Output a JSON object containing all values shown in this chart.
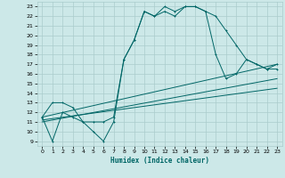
{
  "xlabel": "Humidex (Indice chaleur)",
  "xlim": [
    -0.5,
    23.5
  ],
  "ylim": [
    8.5,
    23.5
  ],
  "yticks": [
    9,
    10,
    11,
    12,
    13,
    14,
    15,
    16,
    17,
    18,
    19,
    20,
    21,
    22,
    23
  ],
  "xticks": [
    0,
    1,
    2,
    3,
    4,
    5,
    6,
    7,
    8,
    9,
    10,
    11,
    12,
    13,
    14,
    15,
    16,
    17,
    18,
    19,
    20,
    21,
    22,
    23
  ],
  "bg_color": "#cce8e8",
  "grid_color": "#aacccc",
  "line_color": "#006666",
  "line1": [
    [
      0,
      11.5
    ],
    [
      1,
      13.0
    ],
    [
      2,
      13.0
    ],
    [
      3,
      12.5
    ],
    [
      4,
      11.0
    ],
    [
      5,
      11.0
    ],
    [
      6,
      11.0
    ],
    [
      7,
      11.5
    ],
    [
      8,
      17.5
    ],
    [
      9,
      19.5
    ],
    [
      10,
      22.5
    ],
    [
      11,
      22.0
    ],
    [
      12,
      23.0
    ],
    [
      13,
      22.5
    ],
    [
      14,
      23.0
    ],
    [
      15,
      23.0
    ],
    [
      16,
      22.5
    ],
    [
      17,
      22.0
    ],
    [
      18,
      20.5
    ],
    [
      19,
      19.0
    ],
    [
      20,
      17.5
    ],
    [
      21,
      17.0
    ],
    [
      22,
      16.5
    ],
    [
      23,
      17.0
    ]
  ],
  "line2": [
    [
      0,
      11.5
    ],
    [
      1,
      9.0
    ],
    [
      2,
      12.0
    ],
    [
      3,
      11.5
    ],
    [
      4,
      11.0
    ],
    [
      5,
      10.0
    ],
    [
      6,
      9.0
    ],
    [
      7,
      11.0
    ],
    [
      8,
      17.5
    ],
    [
      9,
      19.5
    ],
    [
      10,
      22.5
    ],
    [
      11,
      22.0
    ],
    [
      12,
      22.5
    ],
    [
      13,
      22.0
    ],
    [
      14,
      23.0
    ],
    [
      15,
      23.0
    ],
    [
      16,
      22.5
    ],
    [
      17,
      18.0
    ],
    [
      18,
      15.5
    ],
    [
      19,
      16.0
    ],
    [
      20,
      17.5
    ],
    [
      21,
      17.0
    ],
    [
      22,
      16.5
    ],
    [
      23,
      16.5
    ]
  ],
  "line3": [
    [
      0,
      11.5
    ],
    [
      23,
      17.0
    ]
  ],
  "line4": [
    [
      0,
      11.0
    ],
    [
      23,
      15.5
    ]
  ],
  "line5": [
    [
      0,
      11.2
    ],
    [
      23,
      14.5
    ]
  ]
}
